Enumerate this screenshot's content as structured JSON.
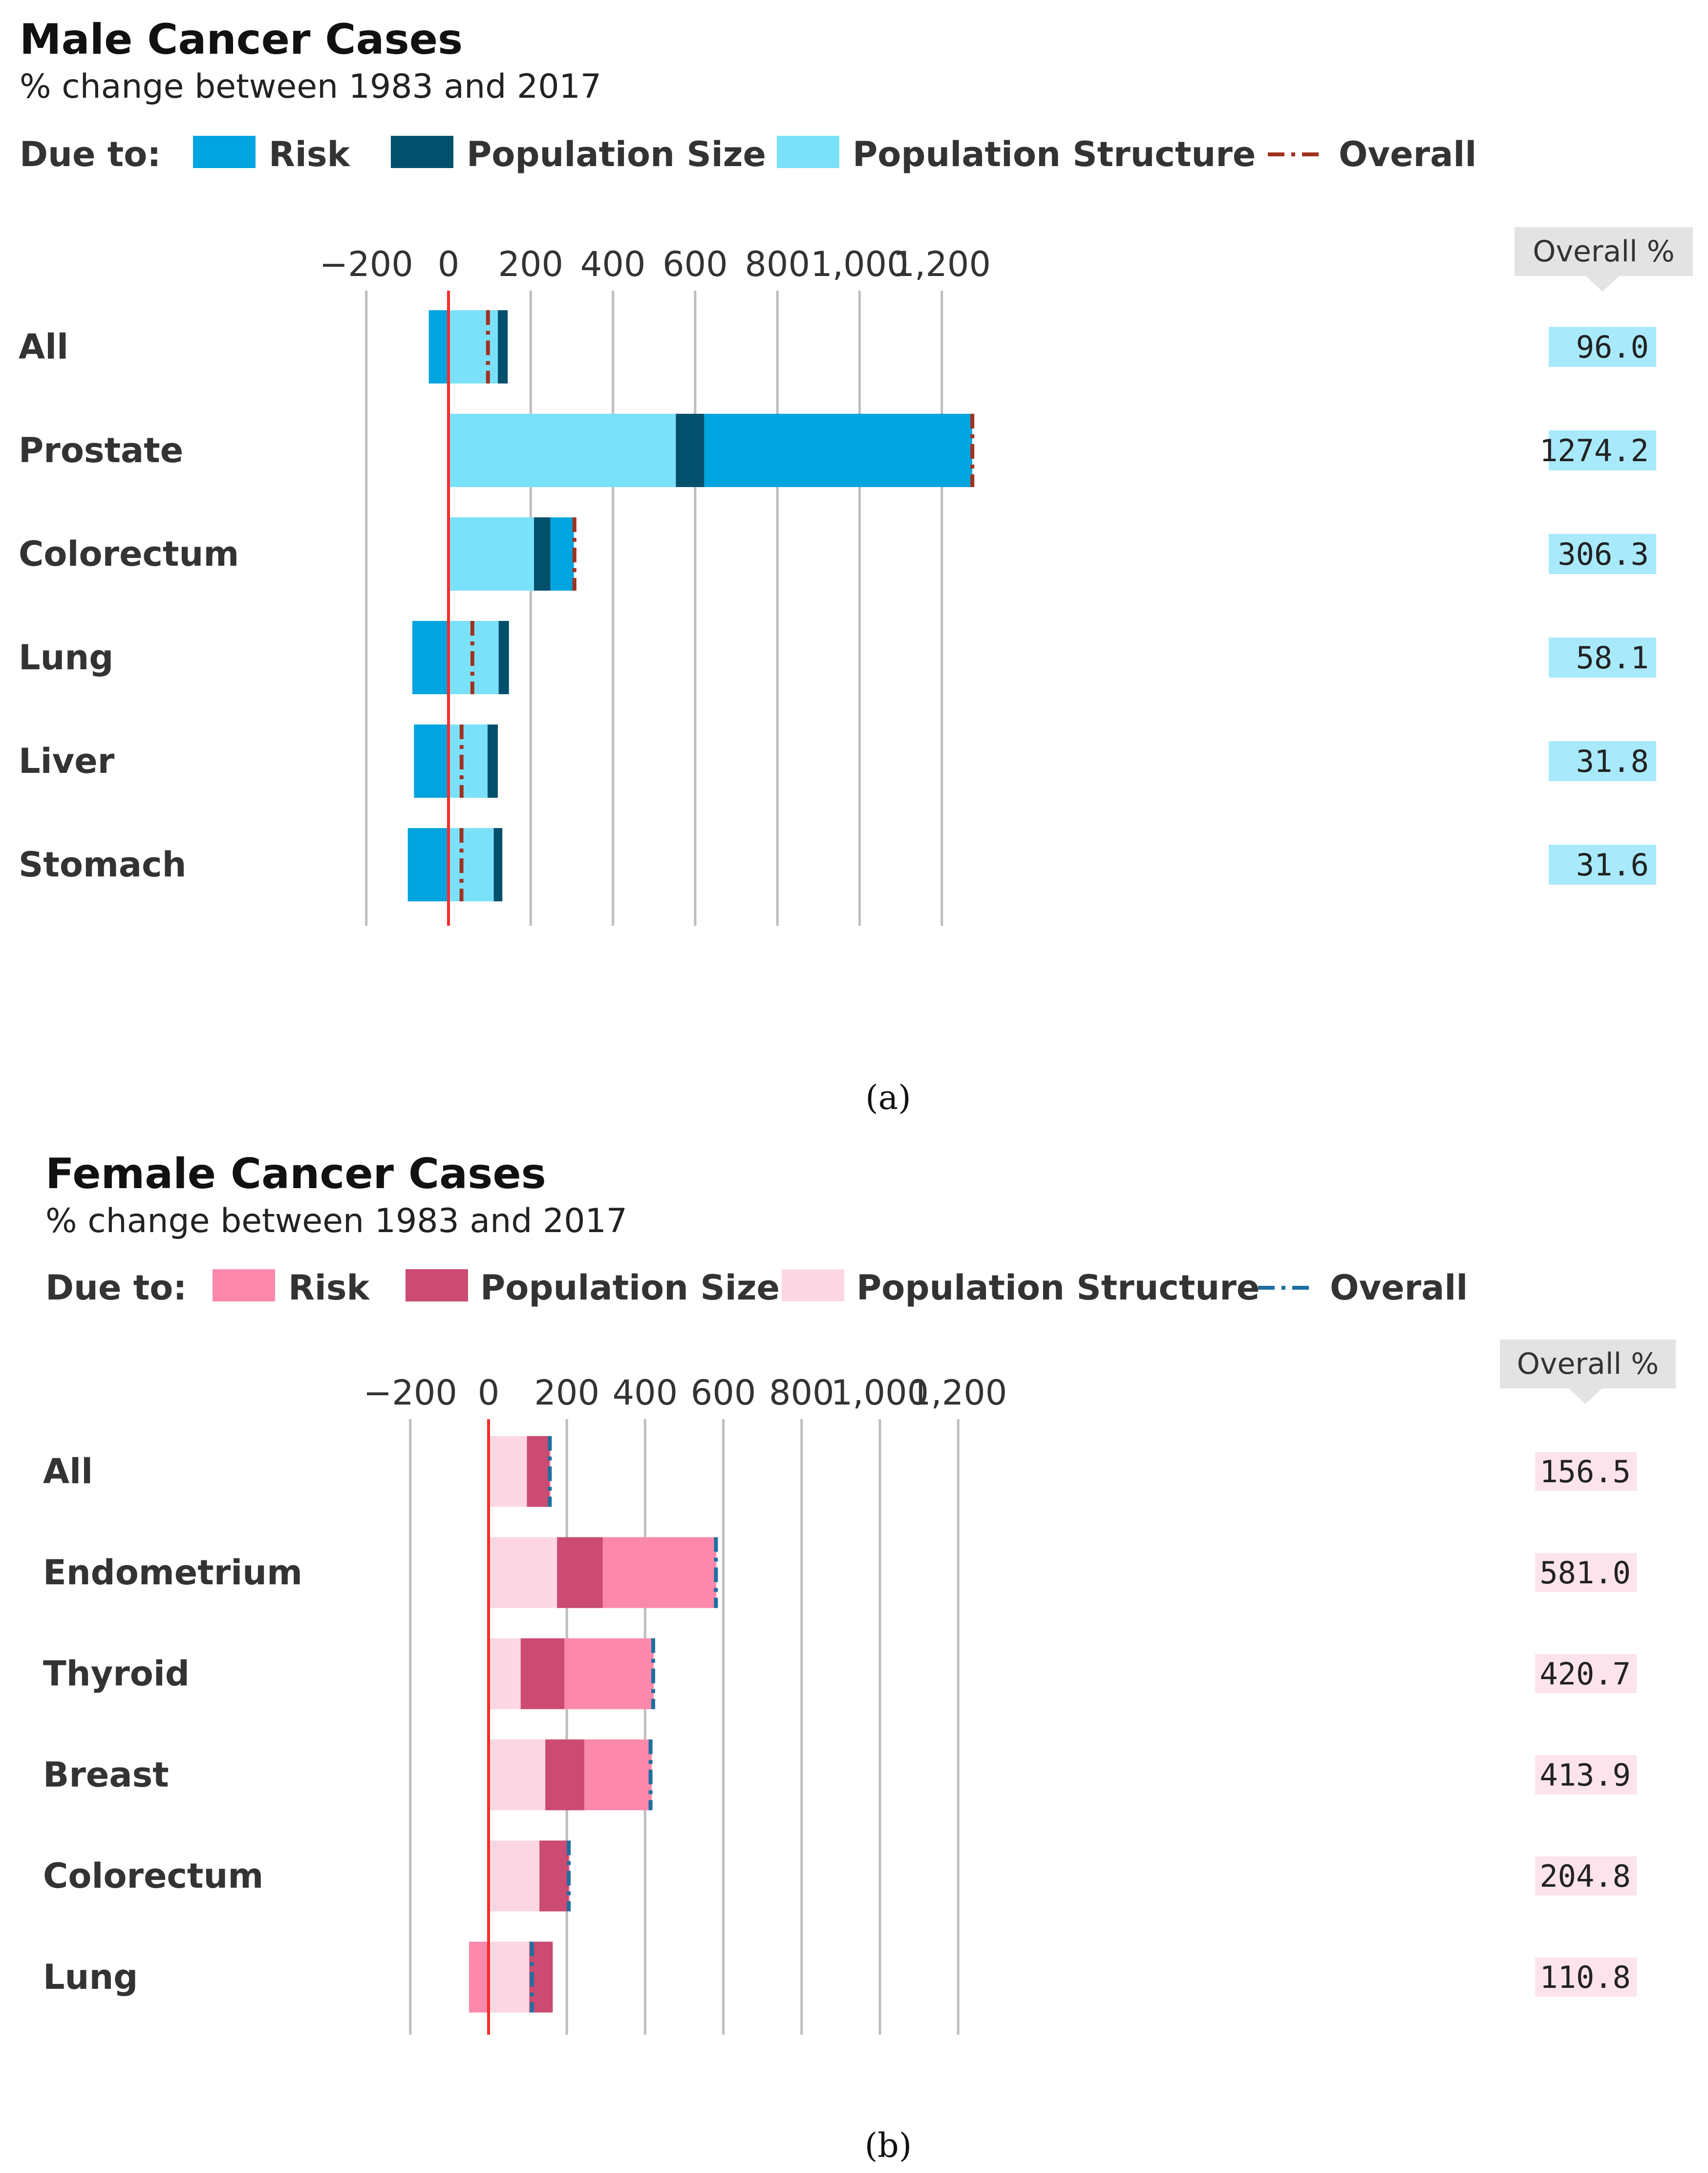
{
  "chart_data": [
    {
      "type": "bar",
      "stacked": true,
      "orientation": "horizontal",
      "title": "Male Cancer Cases",
      "subtitle": "% change between 1983 and 2017",
      "legend_prefix": "Due to:",
      "legend_placement": "top",
      "overall_header": "Overall %",
      "panel_label": "(a)",
      "xlim": [
        -200,
        1300
      ],
      "ticks": [
        -200,
        0,
        200,
        400,
        600,
        800,
        1000,
        1200
      ],
      "tick_labels": [
        "−200",
        "0",
        "200",
        "400",
        "600",
        "800",
        "1,000",
        "1,200"
      ],
      "grid": true,
      "colors": {
        "risk": "#00a4de",
        "population_size": "#03506d",
        "population_structure": "#7be1fb",
        "overall": "#a03220",
        "zero_line": "#ff2b2b",
        "overall_box": "#a8e9fb"
      },
      "legend": [
        {
          "key": "risk",
          "label": "Risk"
        },
        {
          "key": "population_size",
          "label": "Population Size"
        },
        {
          "key": "population_structure",
          "label": "Population Structure"
        },
        {
          "key": "overall",
          "label": "Overall"
        }
      ],
      "categories": [
        "All",
        "Prostate",
        "Colorectum",
        "Lung",
        "Liver",
        "Stomach"
      ],
      "series": [
        {
          "key": "risk",
          "name": "Risk",
          "values": [
            -48,
            652,
            57,
            -88,
            -84,
            -99
          ]
        },
        {
          "key": "population_structure",
          "name": "Population Structure",
          "values": [
            120,
            553,
            208,
            122,
            95,
            110
          ]
        },
        {
          "key": "population_size",
          "name": "Population Size",
          "values": [
            24,
            69,
            40,
            25,
            25,
            21
          ]
        }
      ],
      "overall_values": [
        96.0,
        1274.2,
        306.3,
        58.1,
        31.8,
        31.6
      ],
      "overall_labels": [
        "96.0",
        "1274.2",
        "306.3",
        "58.1",
        "31.8",
        "31.6"
      ]
    },
    {
      "type": "bar",
      "stacked": true,
      "orientation": "horizontal",
      "title": "Female Cancer Cases",
      "subtitle": "% change between 1983 and 2017",
      "legend_prefix": "Due to:",
      "legend_placement": "top",
      "overall_header": "Overall %",
      "panel_label": "(b)",
      "xlim": [
        -200,
        1300
      ],
      "ticks": [
        -200,
        0,
        200,
        400,
        600,
        800,
        1000,
        1200
      ],
      "tick_labels": [
        "−200",
        "0",
        "200",
        "400",
        "600",
        "800",
        "1,000",
        "1,200"
      ],
      "grid": true,
      "colors": {
        "risk": "#fc89ab",
        "population_size": "#cb4b72",
        "population_structure": "#fdd7e4",
        "overall": "#1f6f9f",
        "zero_line": "#ff2b2b",
        "overall_box": "#fde3ec"
      },
      "legend": [
        {
          "key": "risk",
          "label": "Risk"
        },
        {
          "key": "population_size",
          "label": "Population Size"
        },
        {
          "key": "population_structure",
          "label": "Population Structure"
        },
        {
          "key": "overall",
          "label": "Overall"
        }
      ],
      "categories": [
        "All",
        "Endometrium",
        "Thyroid",
        "Breast",
        "Colorectum",
        "Lung"
      ],
      "series": [
        {
          "key": "risk",
          "name": "Risk",
          "values": [
            2,
            290,
            228,
            172,
            2,
            -50
          ]
        },
        {
          "key": "population_structure",
          "name": "Population Structure",
          "values": [
            98,
            175,
            82,
            145,
            130,
            104
          ]
        },
        {
          "key": "population_size",
          "name": "Population Size",
          "values": [
            58,
            117,
            112,
            100,
            75,
            60
          ]
        }
      ],
      "overall_values": [
        156.5,
        581.0,
        420.7,
        413.9,
        204.8,
        110.8
      ],
      "overall_labels": [
        "156.5",
        "581.0",
        "420.7",
        "413.9",
        "204.8",
        "110.8"
      ]
    }
  ]
}
